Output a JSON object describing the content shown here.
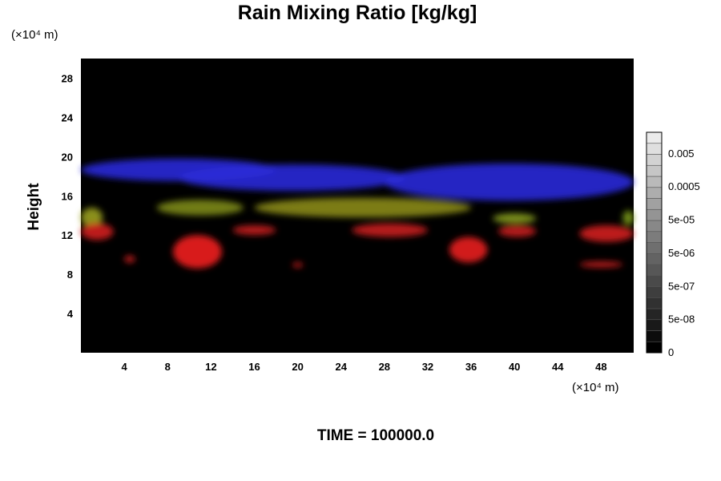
{
  "chart_data": {
    "type": "heatmap",
    "title": "Rain Mixing Ratio [kg/kg]",
    "ylabel": "Height",
    "x_unit_label": "(×10⁴ m)",
    "y_unit_label": "(×10⁴ m)",
    "xlim": [
      0,
      51
    ],
    "ylim": [
      0,
      30
    ],
    "x_ticks": [
      4,
      8,
      12,
      16,
      20,
      24,
      28,
      32,
      36,
      40,
      44,
      48
    ],
    "y_ticks": [
      4,
      8,
      12,
      16,
      20,
      24,
      28
    ],
    "colorbar": {
      "tick_labels": [
        "0",
        "5e-08",
        "5e-07",
        "5e-06",
        "5e-05",
        "0.0005",
        "0.005"
      ],
      "tick_values": [
        0,
        5e-08,
        5e-07,
        5e-06,
        5e-05,
        0.0005,
        0.005
      ],
      "levels": 20,
      "colors": {
        "low": "#000000",
        "high": "#ebebeb"
      }
    },
    "background": "#000000",
    "features": [
      {
        "band": "blue",
        "color": "#2a2ad8",
        "x": [
          0,
          18
        ],
        "y": [
          17.5,
          19.8
        ]
      },
      {
        "band": "blue",
        "color": "#2a2ad8",
        "x": [
          9,
          30
        ],
        "y": [
          16.5,
          19.2
        ]
      },
      {
        "band": "blue",
        "color": "#2a2ad8",
        "x": [
          28,
          51
        ],
        "y": [
          15.5,
          19.3
        ]
      },
      {
        "band": "yellow-green",
        "color": "#9aa020",
        "x": [
          0,
          2
        ],
        "y": [
          12.8,
          14.8
        ]
      },
      {
        "band": "yellow-green",
        "color": "#7d8a18",
        "x": [
          7,
          15
        ],
        "y": [
          14.0,
          15.6
        ]
      },
      {
        "band": "yellow-green",
        "color": "#8a8a1a",
        "x": [
          16,
          36
        ],
        "y": [
          13.8,
          15.8
        ]
      },
      {
        "band": "yellow-green",
        "color": "#88a020",
        "x": [
          38,
          42
        ],
        "y": [
          13.2,
          14.2
        ]
      },
      {
        "band": "yellow-green",
        "color": "#7a9a1a",
        "x": [
          50,
          51
        ],
        "y": [
          13.0,
          14.5
        ]
      },
      {
        "band": "red",
        "color": "#d21e1e",
        "x": [
          0,
          3
        ],
        "y": [
          11.5,
          13.2
        ]
      },
      {
        "band": "red",
        "color": "#d21e1e",
        "x": [
          4,
          5
        ],
        "y": [
          9.2,
          9.9
        ]
      },
      {
        "band": "red",
        "color": "#f02020",
        "x": [
          8.5,
          13
        ],
        "y": [
          8.6,
          12.0
        ]
      },
      {
        "band": "red",
        "color": "#c81e1e",
        "x": [
          14,
          18
        ],
        "y": [
          12.0,
          13.0
        ]
      },
      {
        "band": "red",
        "color": "#d21e1e",
        "x": [
          19.5,
          20.5
        ],
        "y": [
          8.7,
          9.2
        ]
      },
      {
        "band": "red",
        "color": "#c81e1e",
        "x": [
          25,
          32
        ],
        "y": [
          11.8,
          13.2
        ]
      },
      {
        "band": "red",
        "color": "#e82020",
        "x": [
          34,
          37.5
        ],
        "y": [
          9.2,
          11.8
        ]
      },
      {
        "band": "red",
        "color": "#c81e1e",
        "x": [
          38.5,
          42
        ],
        "y": [
          11.8,
          13.0
        ]
      },
      {
        "band": "red",
        "color": "#d21e1e",
        "x": [
          46,
          50
        ],
        "y": [
          8.7,
          9.3
        ]
      },
      {
        "band": "red",
        "color": "#d21e1e",
        "x": [
          46,
          51
        ],
        "y": [
          11.3,
          13.0
        ]
      }
    ]
  },
  "footer": {
    "time_label": "TIME = 100000.0"
  }
}
